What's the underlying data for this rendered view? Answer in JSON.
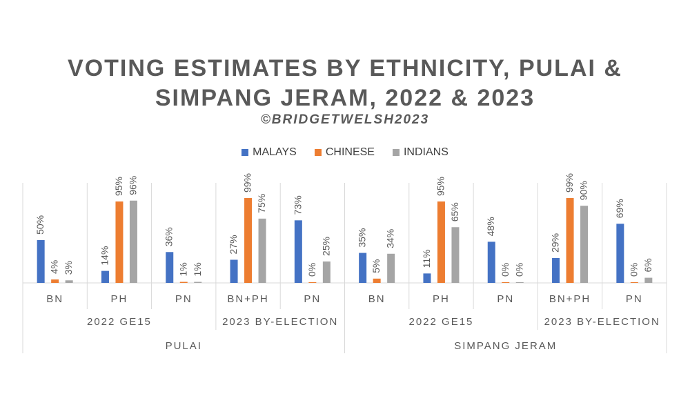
{
  "chart_data": {
    "type": "bar",
    "title_lines": [
      "VOTING ESTIMATES BY ETHNICITY, PULAI &",
      "SIMPANG JERAM, 2022 & 2023"
    ],
    "subtitle": "©BRIDGETWELSH2023",
    "ylim": [
      0,
      100
    ],
    "grid": false,
    "legend_position": "top",
    "series": [
      {
        "name": "MALAYS",
        "color": "#4472C4",
        "values": [
          50,
          14,
          36,
          27,
          73,
          35,
          11,
          48,
          29,
          69
        ]
      },
      {
        "name": "CHINESE",
        "color": "#ED7D31",
        "values": [
          4,
          95,
          1,
          99,
          0,
          5,
          95,
          0,
          99,
          0
        ]
      },
      {
        "name": "INDIANS",
        "color": "#A5A5A5",
        "values": [
          3,
          96,
          1,
          75,
          25,
          34,
          65,
          0,
          90,
          6
        ]
      }
    ],
    "categories": [
      "BN",
      "PH",
      "PN",
      "BN+PH",
      "PN",
      "BN",
      "PH",
      "PN",
      "BN+PH",
      "PN"
    ],
    "mid_groups": [
      {
        "label": "2022 GE15",
        "count": 3
      },
      {
        "label": "2023 BY-ELECTION",
        "count": 2
      },
      {
        "label": "2022 GE15",
        "count": 3
      },
      {
        "label": "2023 BY-ELECTION",
        "count": 2
      }
    ],
    "outer_groups": [
      {
        "label": "PULAI",
        "count": 5
      },
      {
        "label": "SIMPANG JERAM",
        "count": 5
      }
    ]
  }
}
